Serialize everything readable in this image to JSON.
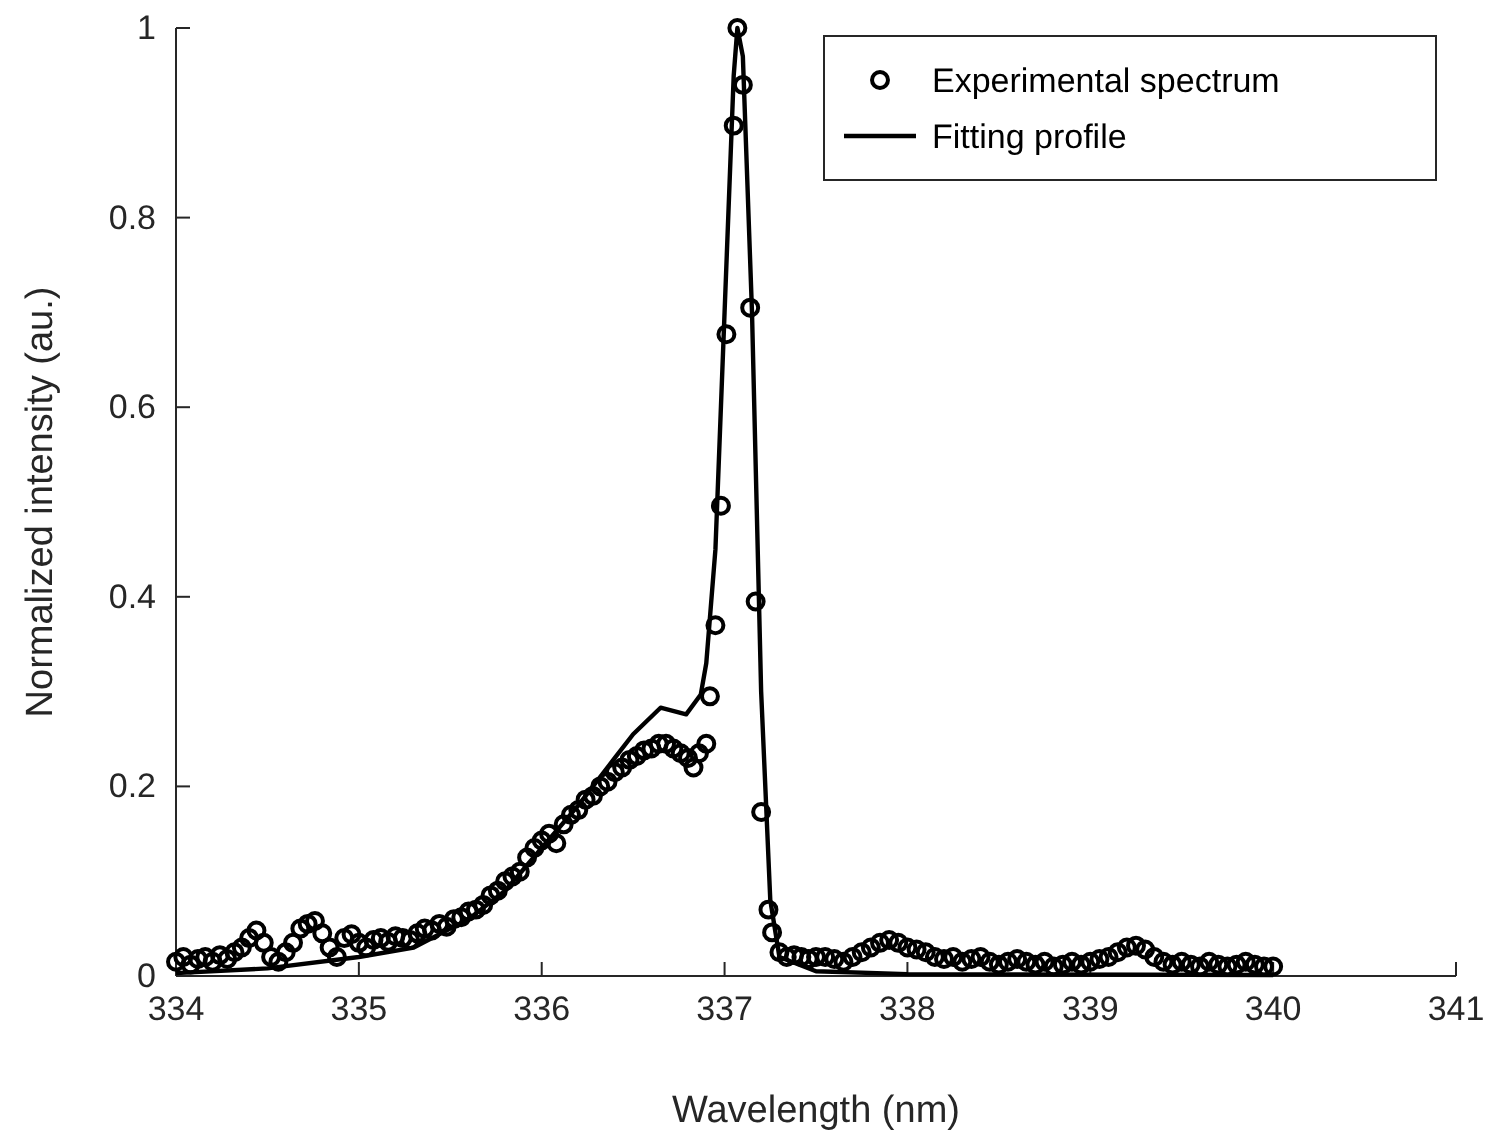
{
  "chart_data": {
    "type": "scatter",
    "xlabel": "Wavelength (nm)",
    "ylabel": "Normalized intensity (au.)",
    "xlim": [
      334,
      341
    ],
    "ylim": [
      0,
      1
    ],
    "xticks": [
      334,
      335,
      336,
      337,
      338,
      339,
      340,
      341
    ],
    "yticks": [
      0,
      0.2,
      0.4,
      0.6,
      0.8,
      1
    ],
    "grid": false,
    "legend": "top right",
    "series": [
      {
        "name": "Experimental spectrum",
        "marker": "circle",
        "color": "#000000",
        "x": [
          334.0,
          334.04,
          334.08,
          334.12,
          334.16,
          334.2,
          334.24,
          334.28,
          334.32,
          334.36,
          334.4,
          334.44,
          334.48,
          334.52,
          334.56,
          334.6,
          334.64,
          334.68,
          334.72,
          334.76,
          334.8,
          334.84,
          334.88,
          334.92,
          334.96,
          335.0,
          335.04,
          335.08,
          335.12,
          335.16,
          335.2,
          335.24,
          335.28,
          335.32,
          335.36,
          335.4,
          335.44,
          335.48,
          335.52,
          335.56,
          335.6,
          335.64,
          335.68,
          335.72,
          335.76,
          335.8,
          335.84,
          335.88,
          335.92,
          335.96,
          336.0,
          336.04,
          336.08,
          336.12,
          336.16,
          336.2,
          336.24,
          336.28,
          336.32,
          336.36,
          336.4,
          336.44,
          336.48,
          336.52,
          336.56,
          336.6,
          336.64,
          336.68,
          336.72,
          336.76,
          336.8,
          336.83,
          336.86,
          336.9,
          336.92,
          336.95,
          336.98,
          337.01,
          337.05,
          337.07,
          337.1,
          337.14,
          337.17,
          337.2,
          337.24,
          337.26,
          337.3,
          337.34,
          337.38,
          337.42,
          337.46,
          337.5,
          337.55,
          337.6,
          337.65,
          337.7,
          337.75,
          337.8,
          337.85,
          337.9,
          337.95,
          338.0,
          338.05,
          338.1,
          338.15,
          338.2,
          338.25,
          338.3,
          338.35,
          338.4,
          338.45,
          338.5,
          338.55,
          338.6,
          338.65,
          338.7,
          338.75,
          338.8,
          338.85,
          338.9,
          338.95,
          339.0,
          339.05,
          339.1,
          339.15,
          339.2,
          339.25,
          339.3,
          339.35,
          339.4,
          339.45,
          339.5,
          339.55,
          339.6,
          339.65,
          339.7,
          339.75,
          339.8,
          339.85,
          339.9,
          339.95,
          340.0
        ],
        "values": [
          0.015,
          0.02,
          0.012,
          0.018,
          0.02,
          0.015,
          0.022,
          0.018,
          0.025,
          0.03,
          0.04,
          0.048,
          0.035,
          0.02,
          0.015,
          0.025,
          0.035,
          0.05,
          0.055,
          0.058,
          0.045,
          0.03,
          0.02,
          0.04,
          0.044,
          0.035,
          0.03,
          0.038,
          0.04,
          0.036,
          0.042,
          0.04,
          0.038,
          0.045,
          0.05,
          0.048,
          0.055,
          0.052,
          0.06,
          0.062,
          0.068,
          0.07,
          0.075,
          0.085,
          0.09,
          0.1,
          0.105,
          0.11,
          0.125,
          0.135,
          0.143,
          0.15,
          0.14,
          0.16,
          0.17,
          0.175,
          0.186,
          0.19,
          0.2,
          0.205,
          0.215,
          0.22,
          0.228,
          0.232,
          0.238,
          0.24,
          0.245,
          0.245,
          0.24,
          0.235,
          0.23,
          0.22,
          0.235,
          0.245,
          0.295,
          0.37,
          0.496,
          0.677,
          0.897,
          1.0,
          0.94,
          0.705,
          0.395,
          0.173,
          0.07,
          0.046,
          0.025,
          0.02,
          0.022,
          0.02,
          0.018,
          0.02,
          0.02,
          0.018,
          0.015,
          0.02,
          0.025,
          0.03,
          0.035,
          0.038,
          0.035,
          0.03,
          0.028,
          0.025,
          0.02,
          0.018,
          0.02,
          0.015,
          0.018,
          0.02,
          0.015,
          0.012,
          0.015,
          0.018,
          0.015,
          0.012,
          0.015,
          0.01,
          0.012,
          0.015,
          0.012,
          0.015,
          0.018,
          0.02,
          0.025,
          0.03,
          0.032,
          0.028,
          0.02,
          0.015,
          0.012,
          0.015,
          0.012,
          0.01,
          0.015,
          0.012,
          0.01,
          0.012,
          0.015,
          0.012,
          0.01,
          0.01
        ]
      },
      {
        "name": "Fitting profile",
        "type": "line",
        "marker": "none",
        "line_style": "solid",
        "color": "#000000",
        "x": [
          334.0,
          334.5,
          335.0,
          335.3,
          335.6,
          335.8,
          336.0,
          336.2,
          336.4,
          336.5,
          336.65,
          336.79,
          336.87,
          336.9,
          336.95,
          337.0,
          337.05,
          337.07,
          337.1,
          337.15,
          337.2,
          337.25,
          337.3,
          337.5,
          338.0,
          340.0
        ],
        "values": [
          0.003,
          0.008,
          0.02,
          0.03,
          0.06,
          0.09,
          0.135,
          0.18,
          0.23,
          0.255,
          0.283,
          0.276,
          0.297,
          0.33,
          0.45,
          0.7,
          0.95,
          1.0,
          0.97,
          0.7,
          0.3,
          0.08,
          0.02,
          0.005,
          0.002,
          0.001
        ]
      }
    ]
  }
}
